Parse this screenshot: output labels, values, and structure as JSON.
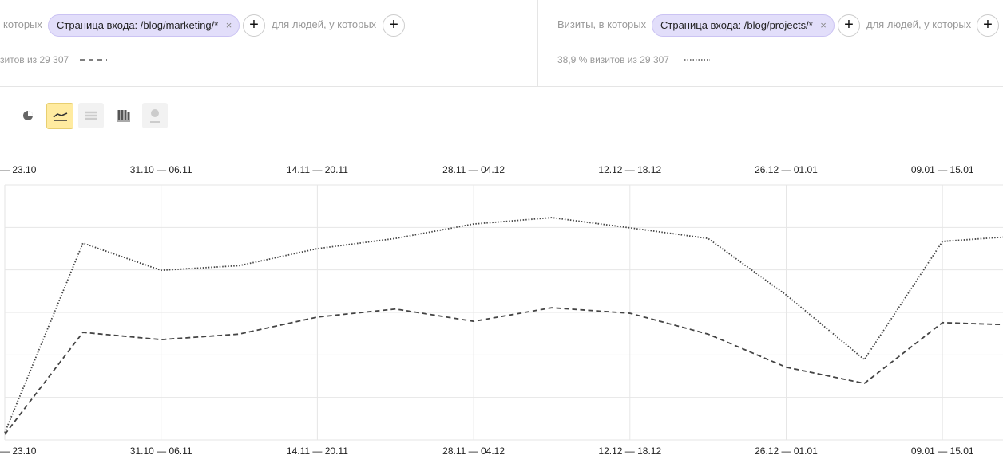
{
  "segments": [
    {
      "prefix": "которых",
      "chip": "Страница входа: /blog/marketing/*",
      "people": "для людей, у которых",
      "share": "зитов из 29 307"
    },
    {
      "prefix": "Визиты, в которых",
      "chip": "Страница входа: /blog/projects/*",
      "people": "для людей, у которых",
      "share": "38,9 % визитов из 29 307"
    }
  ],
  "chart_data": {
    "type": "line",
    "categories": [
      "— 23.10",
      null,
      "31.10 — 06.11",
      null,
      "14.11 — 20.11",
      null,
      "28.11 — 04.12",
      null,
      "12.12 — 18.12",
      null,
      "26.12 — 01.01",
      null,
      "09.01 — 15.01",
      null
    ],
    "series": [
      {
        "color": "#444444",
        "dash": "dashed",
        "values": [
          0.13,
          2.53,
          2.36,
          2.49,
          2.89,
          3.08,
          2.79,
          3.11,
          2.98,
          2.49,
          1.71,
          1.33,
          2.76,
          2.7
        ]
      },
      {
        "color": "#444444",
        "dash": "dotted",
        "values": [
          0.17,
          4.63,
          3.99,
          4.1,
          4.5,
          4.74,
          5.08,
          5.23,
          4.99,
          4.74,
          3.41,
          1.89,
          4.67,
          4.8
        ]
      }
    ],
    "ylim": [
      0,
      6
    ],
    "yticks": [
      0,
      1,
      2,
      3,
      4,
      5,
      6
    ],
    "grid": true
  }
}
